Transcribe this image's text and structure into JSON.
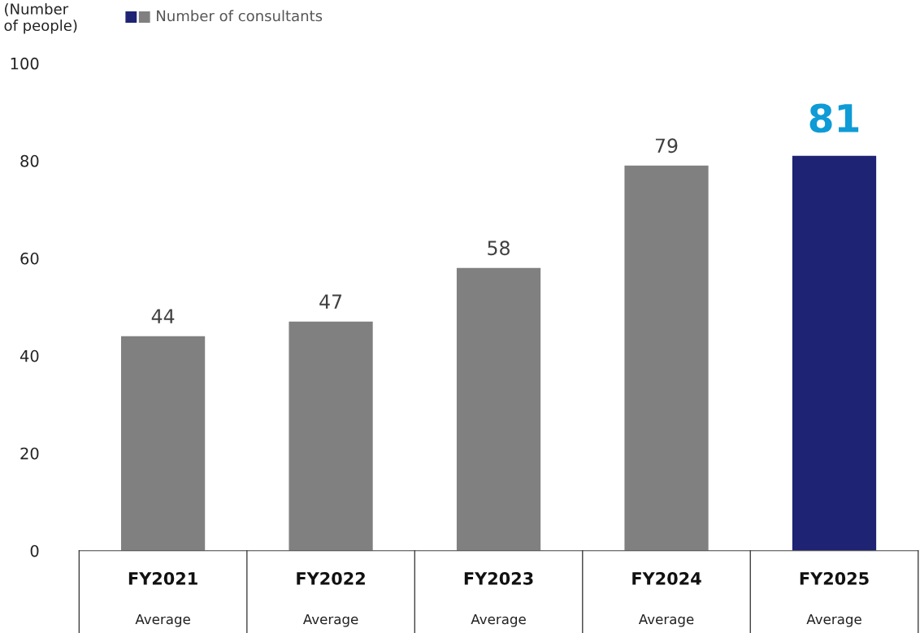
{
  "chart_data": {
    "type": "bar",
    "ylabel": "(Number\nof people)",
    "categories": [
      "FY2021",
      "FY2022",
      "FY2023",
      "FY2024",
      "FY2025"
    ],
    "series": [
      {
        "name": "Number of consultants",
        "values": [
          44,
          47,
          58,
          79,
          81
        ],
        "colors": [
          "#808080",
          "#808080",
          "#808080",
          "#808080",
          "#1f2374"
        ]
      }
    ],
    "annotations": [
      "Average",
      "Average",
      "Average",
      "Average",
      "Average"
    ],
    "ylim": [
      0,
      100
    ],
    "yticks": [
      0,
      20,
      40,
      60,
      80,
      100
    ],
    "data_labels": true,
    "grid": false,
    "legend": "top left"
  }
}
